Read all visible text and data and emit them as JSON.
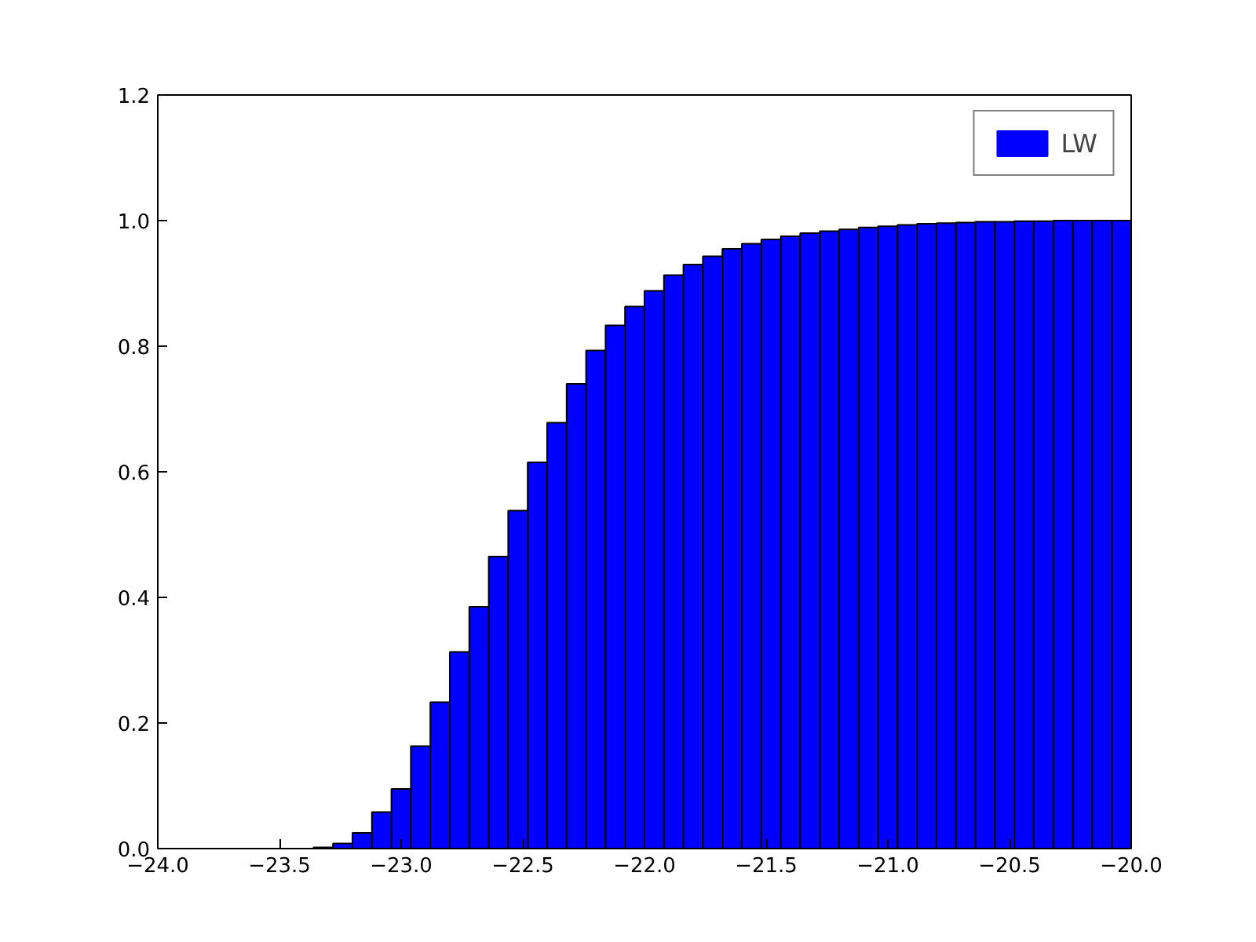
{
  "chart_data": {
    "type": "histogram",
    "bins": [
      -24.0,
      -23.92,
      -23.84,
      -23.76,
      -23.68,
      -23.6,
      -23.52,
      -23.44,
      -23.36,
      -23.28,
      -23.2,
      -23.12,
      -23.04,
      -22.96,
      -22.88,
      -22.8,
      -22.72,
      -22.64,
      -22.56,
      -22.48,
      -22.4,
      -22.32,
      -22.24,
      -22.16,
      -22.08,
      -22.0,
      -21.92,
      -21.84,
      -21.76,
      -21.68,
      -21.6,
      -21.52,
      -21.44,
      -21.36,
      -21.28,
      -21.2,
      -21.12,
      -21.04,
      -20.96,
      -20.88,
      -20.8,
      -20.72,
      -20.64,
      -20.56,
      -20.48,
      -20.4,
      -20.32,
      -20.24,
      -20.16,
      -20.08,
      -20.0
    ],
    "series": [
      {
        "name": "LW",
        "color": "#0000ff",
        "values": [
          0,
          0,
          0,
          0,
          0,
          0,
          0,
          0,
          0.002,
          0.008,
          0.025,
          0.058,
          0.095,
          0.163,
          0.233,
          0.313,
          0.385,
          0.465,
          0.538,
          0.615,
          0.678,
          0.74,
          0.793,
          0.833,
          0.863,
          0.888,
          0.913,
          0.93,
          0.943,
          0.955,
          0.963,
          0.97,
          0.975,
          0.98,
          0.983,
          0.986,
          0.989,
          0.991,
          0.993,
          0.995,
          0.996,
          0.997,
          0.998,
          0.998,
          0.999,
          0.999,
          1.0,
          1.0,
          1.0,
          1.0
        ]
      }
    ],
    "xlim": [
      -24.0,
      -20.0
    ],
    "xticks": [
      {
        "value": -24.0,
        "label": "−24.0"
      },
      {
        "value": -23.5,
        "label": "−23.5"
      },
      {
        "value": -23.0,
        "label": "−23.0"
      },
      {
        "value": -22.5,
        "label": "−22.5"
      },
      {
        "value": -22.0,
        "label": "−22.0"
      },
      {
        "value": -21.5,
        "label": "−21.5"
      },
      {
        "value": -21.0,
        "label": "−21.0"
      },
      {
        "value": -20.5,
        "label": "−20.5"
      },
      {
        "value": -20.0,
        "label": "−20.0"
      }
    ],
    "ylim": [
      0,
      1.2
    ],
    "yticks": [
      {
        "value": 0,
        "label": "0.0"
      },
      {
        "value": 0.2,
        "label": "0.2"
      },
      {
        "value": 0.4,
        "label": "0.4"
      },
      {
        "value": 0.6,
        "label": "0.6"
      },
      {
        "value": 0.8,
        "label": "0.8"
      },
      {
        "value": 1.0,
        "label": "1.0"
      },
      {
        "value": 1.2,
        "label": "1.2"
      }
    ],
    "grid": false,
    "legend": "top right"
  }
}
